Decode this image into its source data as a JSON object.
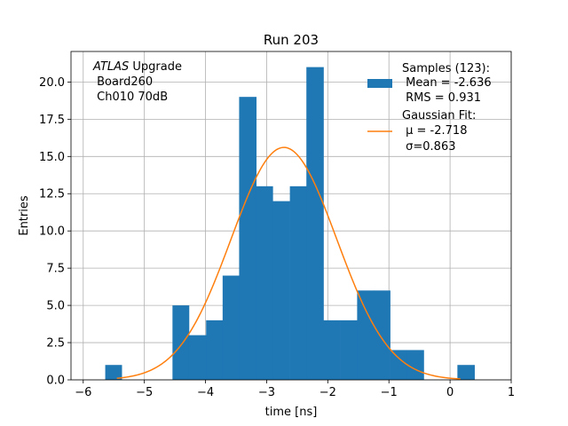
{
  "chart_data": {
    "type": "bar",
    "title": "Run 203",
    "xlabel": "time [ns]",
    "ylabel": "Entries",
    "xlim": [
      -6.2,
      1.0
    ],
    "ylim": [
      0,
      22.05
    ],
    "grid": true,
    "xticks": [
      -6,
      -5,
      -4,
      -3,
      -2,
      -1,
      0,
      1
    ],
    "xtick_labels": [
      "−6",
      "−5",
      "−4",
      "−3",
      "−2",
      "−1",
      "0",
      "1"
    ],
    "yticks": [
      0.0,
      2.5,
      5.0,
      7.5,
      10.0,
      12.5,
      15.0,
      17.5,
      20.0
    ],
    "ytick_labels": [
      "0.0",
      "2.5",
      "5.0",
      "7.5",
      "10.0",
      "12.5",
      "15.0",
      "17.5",
      "20.0"
    ],
    "bin_edges": [
      -5.64,
      -5.37,
      -5.09,
      -4.82,
      -4.54,
      -4.27,
      -3.99,
      -3.72,
      -3.45,
      -3.17,
      -2.9,
      -2.62,
      -2.35,
      -2.07,
      -1.8,
      -1.52,
      -1.25,
      -0.98,
      -0.7,
      -0.43,
      -0.15,
      0.12,
      0.4
    ],
    "counts": [
      1,
      0,
      0,
      0,
      5,
      3,
      4,
      7,
      19,
      13,
      12,
      13,
      21,
      4,
      4,
      6,
      6,
      2,
      2,
      0,
      0,
      1
    ],
    "fit": {
      "mu": -2.718,
      "sigma": 0.863,
      "x_range": [
        -5.45,
        0.17
      ]
    },
    "legend_position": "upper-right",
    "legend": {
      "samples": [
        "Samples (123):",
        " Mean = -2.636",
        " RMS = 0.931"
      ],
      "fit": [
        "Gaussian Fit:",
        " μ = -2.718",
        " σ=0.863"
      ]
    },
    "annotation": {
      "line1_italic": "ATLAS",
      "line1_rest": " Upgrade",
      "line2": " Board260",
      "line3": " Ch010 70dB"
    },
    "colors": {
      "bars": "#1f77b4",
      "fit": "#ff7f0e",
      "grid": "#b0b0b0"
    }
  }
}
